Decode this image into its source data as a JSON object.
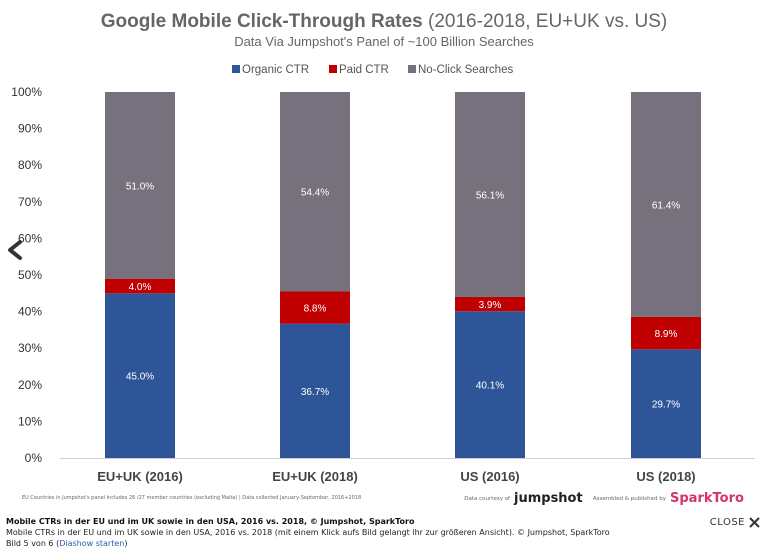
{
  "chart_data": {
    "type": "bar",
    "stacked": true,
    "title_prefix": "Google ",
    "title_bold": "Mobile Click-Through Rates",
    "title_suffix": " (2016-2018, EU+UK vs. US)",
    "subtitle": "Data Via Jumpshot's Panel of ~100 Billion Searches",
    "categories": [
      "EU+UK (2016)",
      "EU+UK (2018)",
      "US (2016)",
      "US (2018)"
    ],
    "series": [
      {
        "name": "Organic CTR",
        "color": "#2e5597",
        "values": [
          45.0,
          36.7,
          40.1,
          29.7
        ],
        "labels": [
          "45.0%",
          "36.7%",
          "40.1%",
          "29.7%"
        ]
      },
      {
        "name": "Paid CTR",
        "color": "#c00000",
        "values": [
          4.0,
          8.8,
          3.9,
          8.9
        ],
        "labels": [
          "4.0%",
          "8.8%",
          "3.9%",
          "8.9%"
        ]
      },
      {
        "name": "No-Click Searches",
        "color": "#77717d",
        "values": [
          51.0,
          54.4,
          56.1,
          61.4
        ],
        "labels": [
          "51.0%",
          "54.4%",
          "56.1%",
          "61.4%"
        ]
      }
    ],
    "ylim": [
      0,
      100
    ],
    "yticks": [
      "0%",
      "10%",
      "20%",
      "30%",
      "40%",
      "50%",
      "60%",
      "70%",
      "80%",
      "90%",
      "100%"
    ],
    "legend_position": "top",
    "gridlines": false,
    "footnote": "EU Countries in Jumpshot's panel includes 26 /27 member countries (excluding Malta) | Data collected January-September, 2016+2018",
    "data_courtesy_label": "Data courtesy of",
    "jumpshot_logo": "jumpshot",
    "assembled_label": "Assembled & published by",
    "sparktoro_logo": "SparkToro"
  },
  "caption": {
    "title": "Mobile CTRs in der EU und im UK sowie in den USA, 2016 vs. 2018, © Jumpshot, SparkToro",
    "description": "Mobile CTRs in der EU und im UK sowie in den USA, 2016 vs. 2018 (mit einem Klick aufs Bild gelangt ihr zur größeren Ansicht). © Jumpshot, SparkToro",
    "counter": "Bild 5 von 6",
    "slideshow_link": "Diashow starten",
    "close_label": "CLOSE"
  },
  "colors": {
    "organic": "#2e5597",
    "paid": "#c00000",
    "noclick": "#77717d",
    "axis_text": "#333333"
  }
}
